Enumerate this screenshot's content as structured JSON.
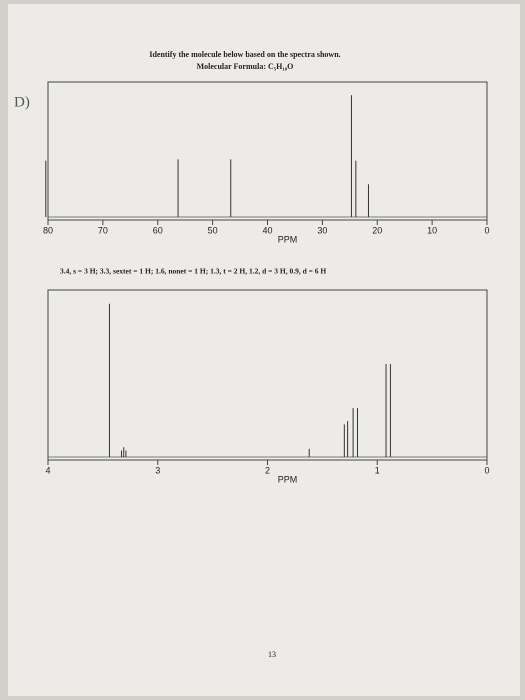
{
  "document": {
    "label": "D)",
    "title": "Identify the molecule below based on the spectra shown.",
    "formula": "Molecular Formula: C₅H₁₀O",
    "caption": "3.4, s = 3 H; 3.3, sextet = 1 H; 1.6, nonet = 1 H; 1.3, t = 2 H, 1.2, d = 3 H, 0.9, d = 6 H",
    "page_number": "13"
  },
  "chart_data": [
    {
      "type": "spectrum",
      "xlabel": "PPM",
      "xlim": [
        80,
        0
      ],
      "ylim": [
        0,
        1
      ],
      "xticks": [
        80,
        70,
        60,
        50,
        40,
        30,
        20,
        10,
        0
      ],
      "x": [
        80.4,
        56.3,
        46.7,
        24.7,
        23.9,
        21.6
      ],
      "values": [
        0.43,
        0.44,
        0.44,
        0.93,
        0.43,
        0.25
      ],
      "color": "#333333"
    },
    {
      "type": "spectrum",
      "xlabel": "PPM",
      "xlim": [
        4,
        0
      ],
      "ylim": [
        0,
        1
      ],
      "xticks": [
        4,
        3,
        2,
        1,
        0
      ],
      "x": [
        3.44,
        3.33,
        3.31,
        3.29,
        1.62,
        1.3,
        1.27,
        1.22,
        1.18,
        0.92,
        0.88
      ],
      "values": [
        0.94,
        0.04,
        0.06,
        0.04,
        0.05,
        0.2,
        0.22,
        0.3,
        0.3,
        0.57,
        0.57
      ],
      "color": "#333333"
    }
  ]
}
